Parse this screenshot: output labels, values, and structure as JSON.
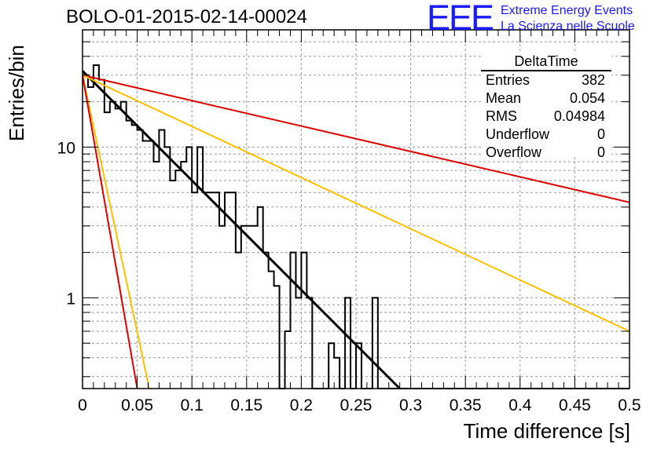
{
  "header": {
    "title": "BOLO-01-2015-02-14-00024",
    "logo_mark": "EEE",
    "logo_line1": "Extreme Energy Events",
    "logo_line2": "La Scienza nelle Scuole"
  },
  "stats": {
    "title": "DeltaTime",
    "rows": [
      {
        "label": "Entries",
        "value": "382"
      },
      {
        "label": "Mean",
        "value": "0.054"
      },
      {
        "label": "RMS",
        "value": "0.04984"
      },
      {
        "label": "Underflow",
        "value": "0"
      },
      {
        "label": "Overflow",
        "value": "0"
      }
    ]
  },
  "colors": {
    "histogram": "#000000",
    "fit_line": "#000000",
    "red_line": "#dd0000",
    "orange_line": "#ffbf00",
    "grid": "#9a9a9a",
    "logo": "#1a1aff"
  },
  "chart_data": {
    "type": "histogram",
    "xlabel": "Time difference [s]",
    "ylabel": "Entries/bin",
    "xlim": [
      0,
      0.5
    ],
    "ylim": [
      0.25,
      60
    ],
    "yscale": "log",
    "grid": true,
    "x_ticks": [
      "0",
      "0.05",
      "0.1",
      "0.15",
      "0.2",
      "0.25",
      "0.3",
      "0.35",
      "0.4",
      "0.45",
      "0.5"
    ],
    "y_ticks": [
      "1",
      "10"
    ],
    "bin_width": 0.005,
    "histogram": {
      "name": "DeltaTime",
      "values": [
        30,
        25,
        35,
        28,
        17,
        20,
        18,
        20,
        15,
        14,
        13,
        11,
        11,
        8,
        13,
        10,
        6,
        7,
        8,
        10,
        5,
        10,
        5,
        5,
        5,
        3,
        5,
        5,
        2,
        3,
        3,
        3,
        4,
        2,
        1.5,
        1.2,
        0,
        0.6,
        2,
        1,
        2,
        1,
        0,
        0,
        0,
        0.5,
        0.4,
        0,
        1,
        0,
        0.5,
        0,
        0,
        1,
        0,
        0,
        0,
        0,
        0,
        0,
        0,
        0,
        0,
        0,
        0,
        0,
        0,
        0,
        0,
        0,
        0,
        0,
        0,
        0,
        0,
        0,
        0,
        0,
        0,
        0,
        0,
        0,
        0,
        0,
        0,
        0,
        0,
        0,
        0,
        0,
        0,
        0,
        0,
        0,
        0,
        0,
        0,
        0,
        0,
        0
      ]
    },
    "curves": [
      {
        "color": "black",
        "points": [
          [
            0,
            32
          ],
          [
            0.29,
            0.25
          ]
        ]
      },
      {
        "color": "red",
        "points": [
          [
            0,
            30
          ],
          [
            0.5,
            4.3
          ]
        ]
      },
      {
        "color": "orange",
        "points": [
          [
            0,
            30
          ],
          [
            0.5,
            0.6
          ]
        ]
      },
      {
        "color": "orange",
        "points": [
          [
            0,
            30
          ],
          [
            0.061,
            0.25
          ]
        ]
      },
      {
        "color": "red",
        "points": [
          [
            0,
            30
          ],
          [
            0.05,
            0.25
          ]
        ]
      }
    ]
  }
}
